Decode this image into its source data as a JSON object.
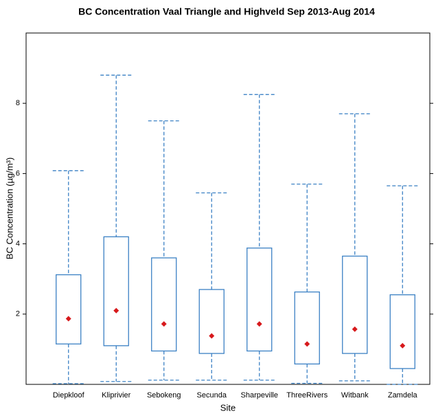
{
  "chart_data": {
    "type": "box",
    "title": "BC Concentration Vaal Triangle and Highveld Sep 2013-Aug 2014",
    "x_label": "Site",
    "y_label": "BC Concentration (µg/m³)",
    "categories": [
      "Diepkloof",
      "Kliprivier",
      "Sebokeng",
      "Secunda",
      "Sharpeville",
      "ThreeRivers",
      "Witbank",
      "Zamdela"
    ],
    "whisker_low": [
      0.02,
      0.08,
      0.12,
      0.12,
      0.12,
      0.03,
      0.1,
      0.0
    ],
    "q1": [
      1.15,
      1.1,
      0.95,
      0.88,
      0.95,
      0.58,
      0.88,
      0.45
    ],
    "q3": [
      3.12,
      4.2,
      3.6,
      2.7,
      3.88,
      2.63,
      3.65,
      2.55
    ],
    "whisker_high": [
      6.08,
      8.8,
      7.5,
      5.45,
      8.25,
      5.7,
      7.7,
      5.65
    ],
    "mean": [
      1.87,
      2.1,
      1.72,
      1.38,
      1.72,
      1.15,
      1.57,
      1.1
    ],
    "box_color": "#3a80c4",
    "mean_color": "#d7191c",
    "ylim": [
      0,
      10
    ],
    "yticks": [
      2,
      4,
      6,
      8
    ]
  }
}
